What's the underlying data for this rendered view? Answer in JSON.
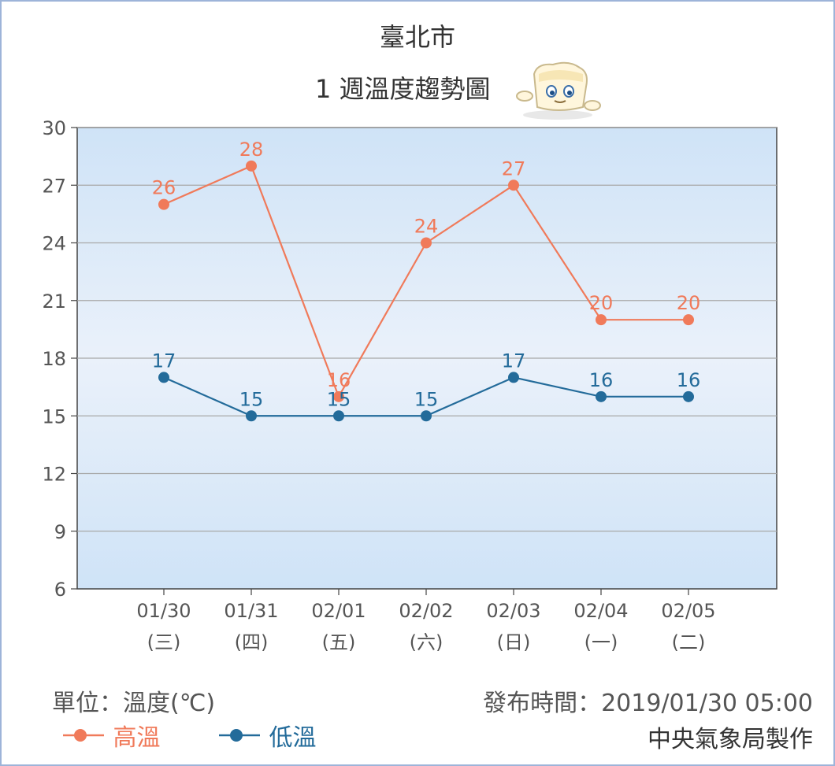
{
  "header": {
    "city": "臺北市",
    "subtitle": "1 週溫度趨勢圖"
  },
  "chart_data": {
    "type": "line",
    "categories": [
      "01/30",
      "01/31",
      "02/01",
      "02/02",
      "02/03",
      "02/04",
      "02/05"
    ],
    "weekdays": [
      "(三)",
      "(四)",
      "(五)",
      "(六)",
      "(日)",
      "(一)",
      "(二)"
    ],
    "ylim": [
      6,
      30
    ],
    "yticks": [
      6,
      9,
      12,
      15,
      18,
      21,
      24,
      27,
      30
    ],
    "grid": true,
    "series": [
      {
        "name": "高溫",
        "color": "#f07a5a",
        "values": [
          26,
          28,
          16,
          24,
          27,
          20,
          20
        ]
      },
      {
        "name": "低溫",
        "color": "#236b9a",
        "values": [
          17,
          15,
          15,
          15,
          17,
          16,
          16
        ]
      }
    ],
    "legend_position": "bottom-left"
  },
  "footer": {
    "unit": "單位：溫度(℃)",
    "published": "發布時間：2019/01/30 05:00",
    "maker": "中央氣象局製作"
  }
}
